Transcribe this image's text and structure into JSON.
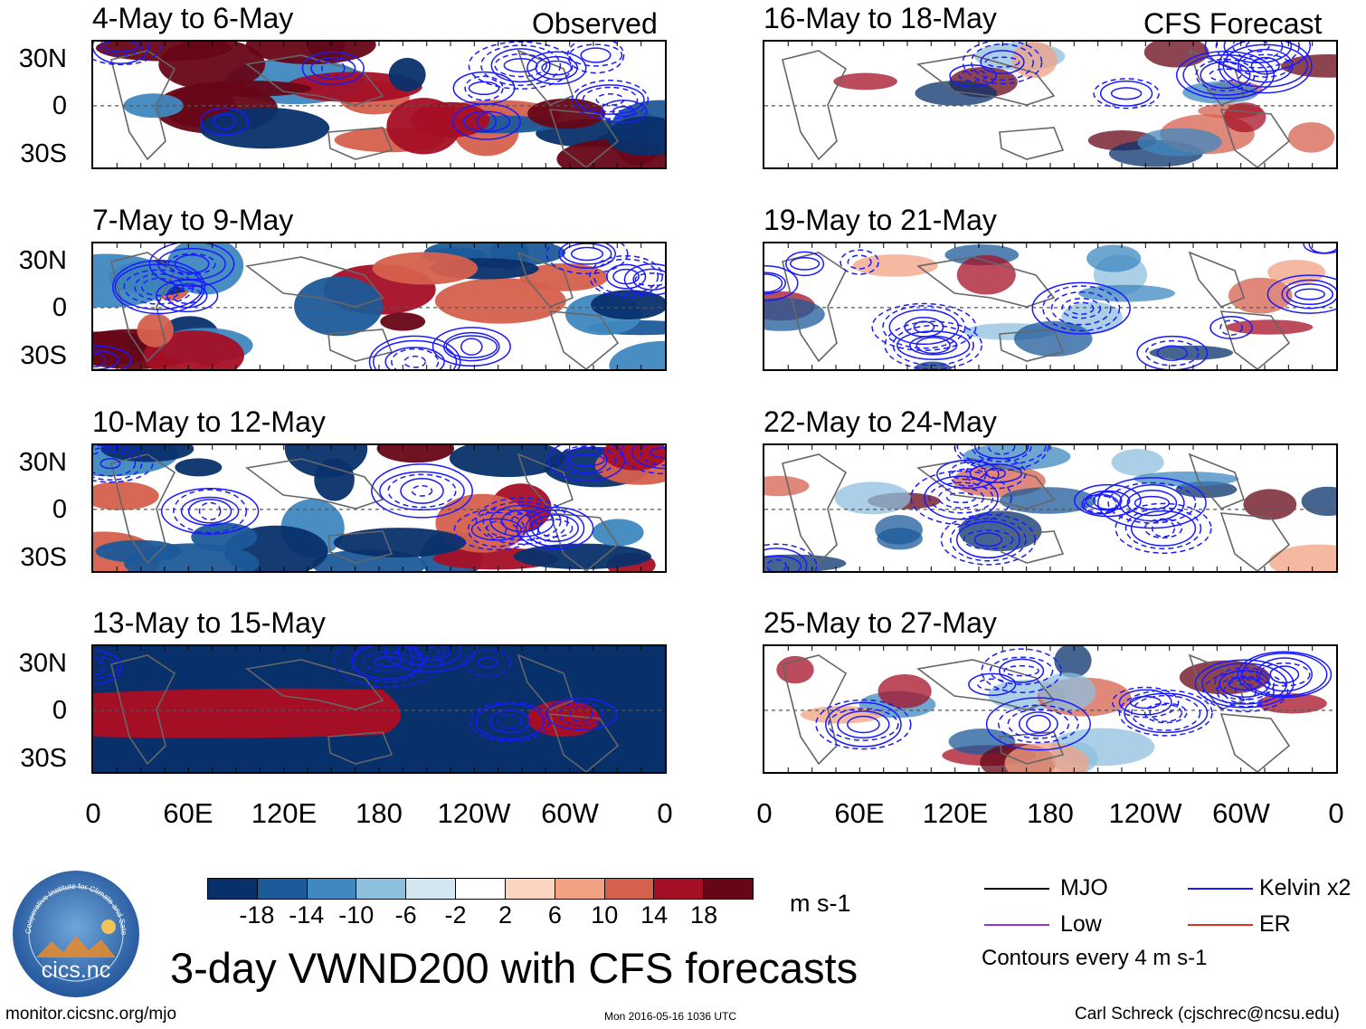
{
  "header": {
    "observed_label": "Observed",
    "forecast_label": "CFS Forecast"
  },
  "panels": {
    "observed": [
      {
        "title": "4-May to 6-May"
      },
      {
        "title": "7-May to 9-May"
      },
      {
        "title": "10-May to 12-May"
      },
      {
        "title": "13-May to 15-May"
      }
    ],
    "forecast": [
      {
        "title": "16-May to 18-May"
      },
      {
        "title": "19-May to 21-May"
      },
      {
        "title": "22-May to 24-May"
      },
      {
        "title": "25-May to 27-May"
      }
    ]
  },
  "axes": {
    "lat_labels": [
      "30N",
      "0",
      "30S"
    ],
    "lon_labels": [
      "0",
      "60E",
      "120E",
      "180",
      "120W",
      "60W",
      "0"
    ]
  },
  "colorbar": {
    "ticks": [
      "-18",
      "-14",
      "-10",
      "-6",
      "-2",
      "2",
      "6",
      "10",
      "14",
      "18"
    ],
    "colors": [
      "#08306b",
      "#1c5a9a",
      "#3f88c0",
      "#8dbfde",
      "#d3e6f2",
      "#ffffff",
      "#fbd5c2",
      "#f2a283",
      "#d5604d",
      "#a50f26",
      "#670617"
    ],
    "units": "m s-1"
  },
  "legend": {
    "mjo": "MJO",
    "kelvin": "Kelvin x2",
    "low": "Low",
    "er": "ER",
    "contours": "Contours every 4 m s-1",
    "colors": {
      "mjo": "#000000",
      "kelvin": "#1a1aff",
      "low": "#a032d2",
      "er": "#e0301e"
    }
  },
  "logo": {
    "text": "cics.nc",
    "ring_text": "Cooperative Institute for Climate and Satellites"
  },
  "footer": {
    "main_title": "3-day VWND200 with CFS forecasts",
    "url": "monitor.cicsnc.org/mjo",
    "timestamp": "Mon 2016-05-16 1036 UTC",
    "author": "Carl Schreck (cjschrec@ncsu.edu)"
  }
}
